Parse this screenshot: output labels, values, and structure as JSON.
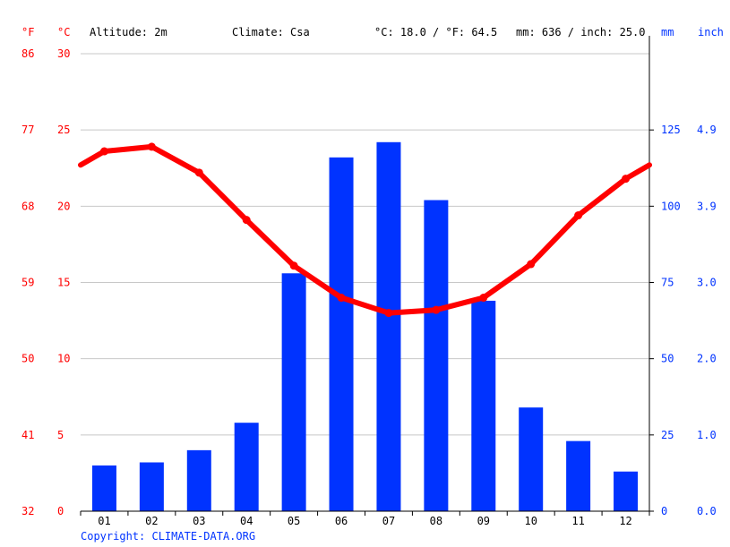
{
  "header": {
    "unit_f": "°F",
    "unit_c": "°C",
    "altitude": "Altitude: 2m",
    "climate": "Climate: Csa",
    "avg_temp": "°C: 18.0 / °F: 64.5",
    "precip": "mm: 636 / inch: 25.0",
    "unit_mm": "mm",
    "unit_inch": "inch"
  },
  "copyright": "Copyright: CLIMATE-DATA.ORG",
  "axes": {
    "left_f_ticks": [
      "86",
      "77",
      "68",
      "59",
      "50",
      "41",
      "32"
    ],
    "left_c_ticks": [
      "30",
      "25",
      "20",
      "15",
      "10",
      "5",
      "0"
    ],
    "right_mm_ticks": [
      "125",
      "100",
      "75",
      "50",
      "25",
      "0"
    ],
    "right_inch_ticks": [
      "4.9",
      "3.9",
      "3.0",
      "2.0",
      "1.0",
      "0.0"
    ]
  },
  "colors": {
    "temperature": "#ff0000",
    "precipitation": "#0033ff",
    "grid": "#c8c8c8",
    "axis": "#000000"
  },
  "chart_data": {
    "type": "bar+line",
    "categories": [
      "01",
      "02",
      "03",
      "04",
      "05",
      "06",
      "07",
      "08",
      "09",
      "10",
      "11",
      "12"
    ],
    "series": [
      {
        "type": "bar",
        "axis": "right",
        "unit": "mm",
        "values": [
          15,
          16,
          20,
          29,
          78,
          116,
          121,
          102,
          69,
          34,
          23,
          13
        ]
      },
      {
        "type": "line",
        "axis": "left",
        "unit": "°C",
        "values": [
          23.6,
          23.9,
          22.2,
          19.1,
          16.1,
          14.0,
          13.0,
          13.2,
          14.0,
          16.2,
          19.4,
          21.8
        ]
      }
    ],
    "temp_ylim": [
      0,
      30
    ],
    "precip_ylim": [
      0,
      150
    ],
    "grid": true
  }
}
